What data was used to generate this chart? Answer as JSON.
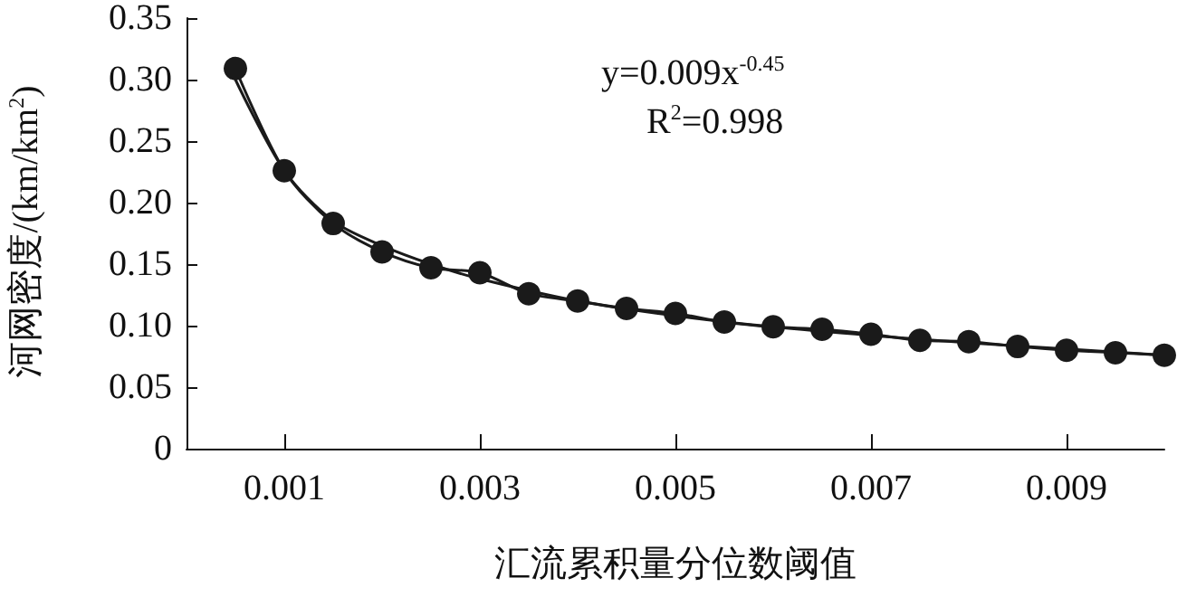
{
  "chart_data": {
    "type": "line",
    "xlabel": "汇流累积量分位数阈值",
    "ylabel": "河网密度/(km/km$^{2}$)",
    "annotations": [
      "y=0.009x$^{-0.45}$",
      "R$^{2}$=0.998"
    ],
    "x": [
      0.0005,
      0.001,
      0.0015,
      0.002,
      0.0025,
      0.003,
      0.0035,
      0.004,
      0.0045,
      0.005,
      0.0055,
      0.006,
      0.0065,
      0.007,
      0.0075,
      0.008,
      0.0085,
      0.009,
      0.0095,
      0.01
    ],
    "series": [
      {
        "color": "#1a1a1a",
        "marker": "circle",
        "values": [
          0.309,
          0.226,
          0.183,
          0.16,
          0.147,
          0.143,
          0.126,
          0.12,
          0.114,
          0.11,
          0.103,
          0.099,
          0.097,
          0.093,
          0.088,
          0.087,
          0.083,
          0.08,
          0.078,
          0.076
        ]
      },
      {
        "color": "#1a1a1a",
        "marker": "none",
        "x": [
          0.0005,
          0.001,
          0.0015,
          0.002,
          0.0025,
          0.003,
          0.004,
          0.005,
          0.006,
          0.007,
          0.008,
          0.009,
          0.01
        ],
        "values": [
          0.3,
          0.226,
          0.185,
          0.165,
          0.15,
          0.138,
          0.12,
          0.108,
          0.099,
          0.092,
          0.086,
          0.081,
          0.076
        ]
      }
    ],
    "xlim": [
      0,
      0.01
    ],
    "xticks": [
      0.001,
      0.003,
      0.005,
      0.007,
      0.009
    ],
    "ylim": [
      0,
      0.35
    ],
    "yticks": [
      0,
      {
        "value": 0.05,
        "label": "0.05"
      },
      {
        "value": 0.1,
        "label": "0.10"
      },
      {
        "value": 0.15,
        "label": "0.15"
      },
      {
        "value": 0.2,
        "label": "0.20"
      },
      {
        "value": 0.25,
        "label": "0.25"
      },
      {
        "value": 0.3,
        "label": "0.30"
      },
      {
        "value": 0.35,
        "label": "0.35"
      }
    ],
    "grid": false,
    "line_style": "solid"
  }
}
